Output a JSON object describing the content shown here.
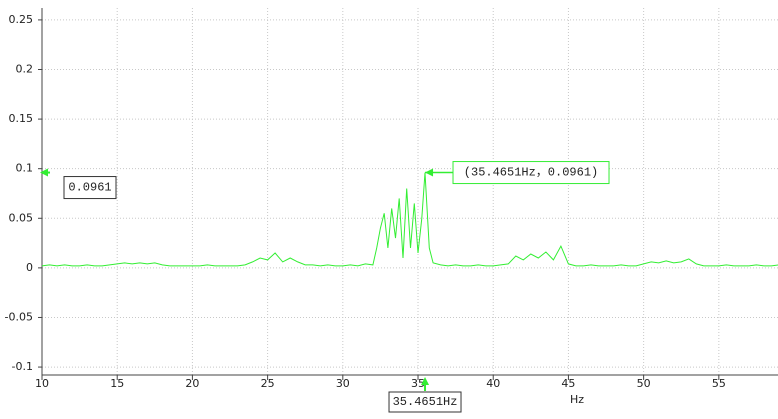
{
  "chart_data": {
    "type": "line",
    "x_label": "Hz",
    "xlim": [
      10,
      59
    ],
    "ylim": [
      -0.108,
      0.262
    ],
    "xticks": [
      10,
      15,
      20,
      25,
      30,
      35,
      40,
      45,
      50,
      55
    ],
    "yticks": [
      0.25,
      0.2,
      0.15,
      0.1,
      0.05,
      0,
      -0.05,
      -0.1
    ],
    "grid": true,
    "x": [
      10,
      10.5,
      11,
      11.5,
      12,
      12.5,
      13,
      13.5,
      14,
      14.5,
      15,
      15.5,
      16,
      16.5,
      17,
      17.5,
      18,
      18.5,
      19,
      19.5,
      20,
      20.5,
      21,
      21.5,
      22,
      22.5,
      23,
      23.5,
      24,
      24.5,
      25,
      25.5,
      26,
      26.5,
      27,
      27.5,
      28,
      28.5,
      29,
      29.5,
      30,
      30.5,
      31,
      31.5,
      32,
      32.25,
      32.5,
      32.75,
      33,
      33.25,
      33.5,
      33.75,
      34,
      34.25,
      34.5,
      34.75,
      35,
      35.25,
      35.4651,
      35.75,
      36,
      36.5,
      37,
      37.5,
      38,
      38.5,
      39,
      39.5,
      40,
      40.5,
      41,
      41.5,
      42,
      42.5,
      43,
      43.5,
      44,
      44.5,
      45,
      45.5,
      46,
      46.5,
      47,
      47.5,
      48,
      48.5,
      49,
      49.5,
      50,
      50.5,
      51,
      51.5,
      52,
      52.5,
      53,
      53.5,
      54,
      54.5,
      55,
      55.5,
      56,
      56.5,
      57,
      57.5,
      58,
      58.5,
      59
    ],
    "series": [
      {
        "color": "#33ee33",
        "values": [
          0.002,
          0.003,
          0.002,
          0.003,
          0.002,
          0.002,
          0.003,
          0.002,
          0.002,
          0.003,
          0.004,
          0.005,
          0.004,
          0.005,
          0.004,
          0.005,
          0.003,
          0.002,
          0.002,
          0.002,
          0.002,
          0.002,
          0.003,
          0.002,
          0.002,
          0.002,
          0.002,
          0.003,
          0.006,
          0.01,
          0.008,
          0.015,
          0.006,
          0.01,
          0.006,
          0.003,
          0.003,
          0.002,
          0.003,
          0.002,
          0.002,
          0.003,
          0.002,
          0.004,
          0.003,
          0.02,
          0.04,
          0.055,
          0.02,
          0.06,
          0.03,
          0.07,
          0.01,
          0.08,
          0.02,
          0.065,
          0.015,
          0.05,
          0.0961,
          0.02,
          0.005,
          0.003,
          0.002,
          0.003,
          0.002,
          0.002,
          0.003,
          0.002,
          0.002,
          0.003,
          0.004,
          0.012,
          0.008,
          0.014,
          0.01,
          0.016,
          0.008,
          0.022,
          0.004,
          0.002,
          0.002,
          0.003,
          0.002,
          0.002,
          0.002,
          0.003,
          0.002,
          0.002,
          0.004,
          0.006,
          0.005,
          0.007,
          0.005,
          0.006,
          0.009,
          0.004,
          0.002,
          0.002,
          0.002,
          0.003,
          0.002,
          0.002,
          0.002,
          0.003,
          0.002,
          0.002,
          0.003
        ]
      }
    ],
    "cursor": {
      "x": 35.4651,
      "y": 0.0961,
      "x_label": "35.4651Hz",
      "y_label": "0.0961",
      "label": "(35.4651Hz，0.0961)"
    }
  }
}
